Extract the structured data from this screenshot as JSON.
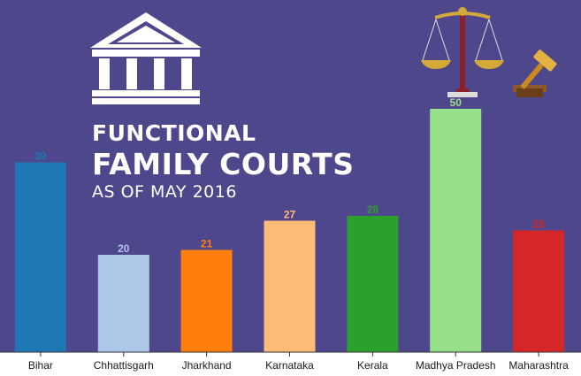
{
  "title": {
    "line1": "FUNCTIONAL",
    "line2": "FAMILY COURTS",
    "line3": "AS OF MAY 2016"
  },
  "icons": [
    "courthouse-icon",
    "scales-of-justice-icon",
    "gavel-icon"
  ],
  "chart_data": {
    "type": "bar",
    "categories": [
      "Bihar",
      "Chhattisgarh",
      "Jharkhand",
      "Karnataka",
      "Kerala",
      "Madhya Pradesh",
      "Maharashtra"
    ],
    "values": [
      39,
      20,
      21,
      27,
      28,
      50,
      25
    ],
    "colors": [
      "#1f77b4",
      "#aec7e8",
      "#ff7f0e",
      "#ffbb78",
      "#2ca02c",
      "#98df8a",
      "#d62728"
    ],
    "ylim": [
      0,
      50
    ],
    "grid": false,
    "axis_background": "#4f478c",
    "xaxis_background": "#4f478c"
  }
}
